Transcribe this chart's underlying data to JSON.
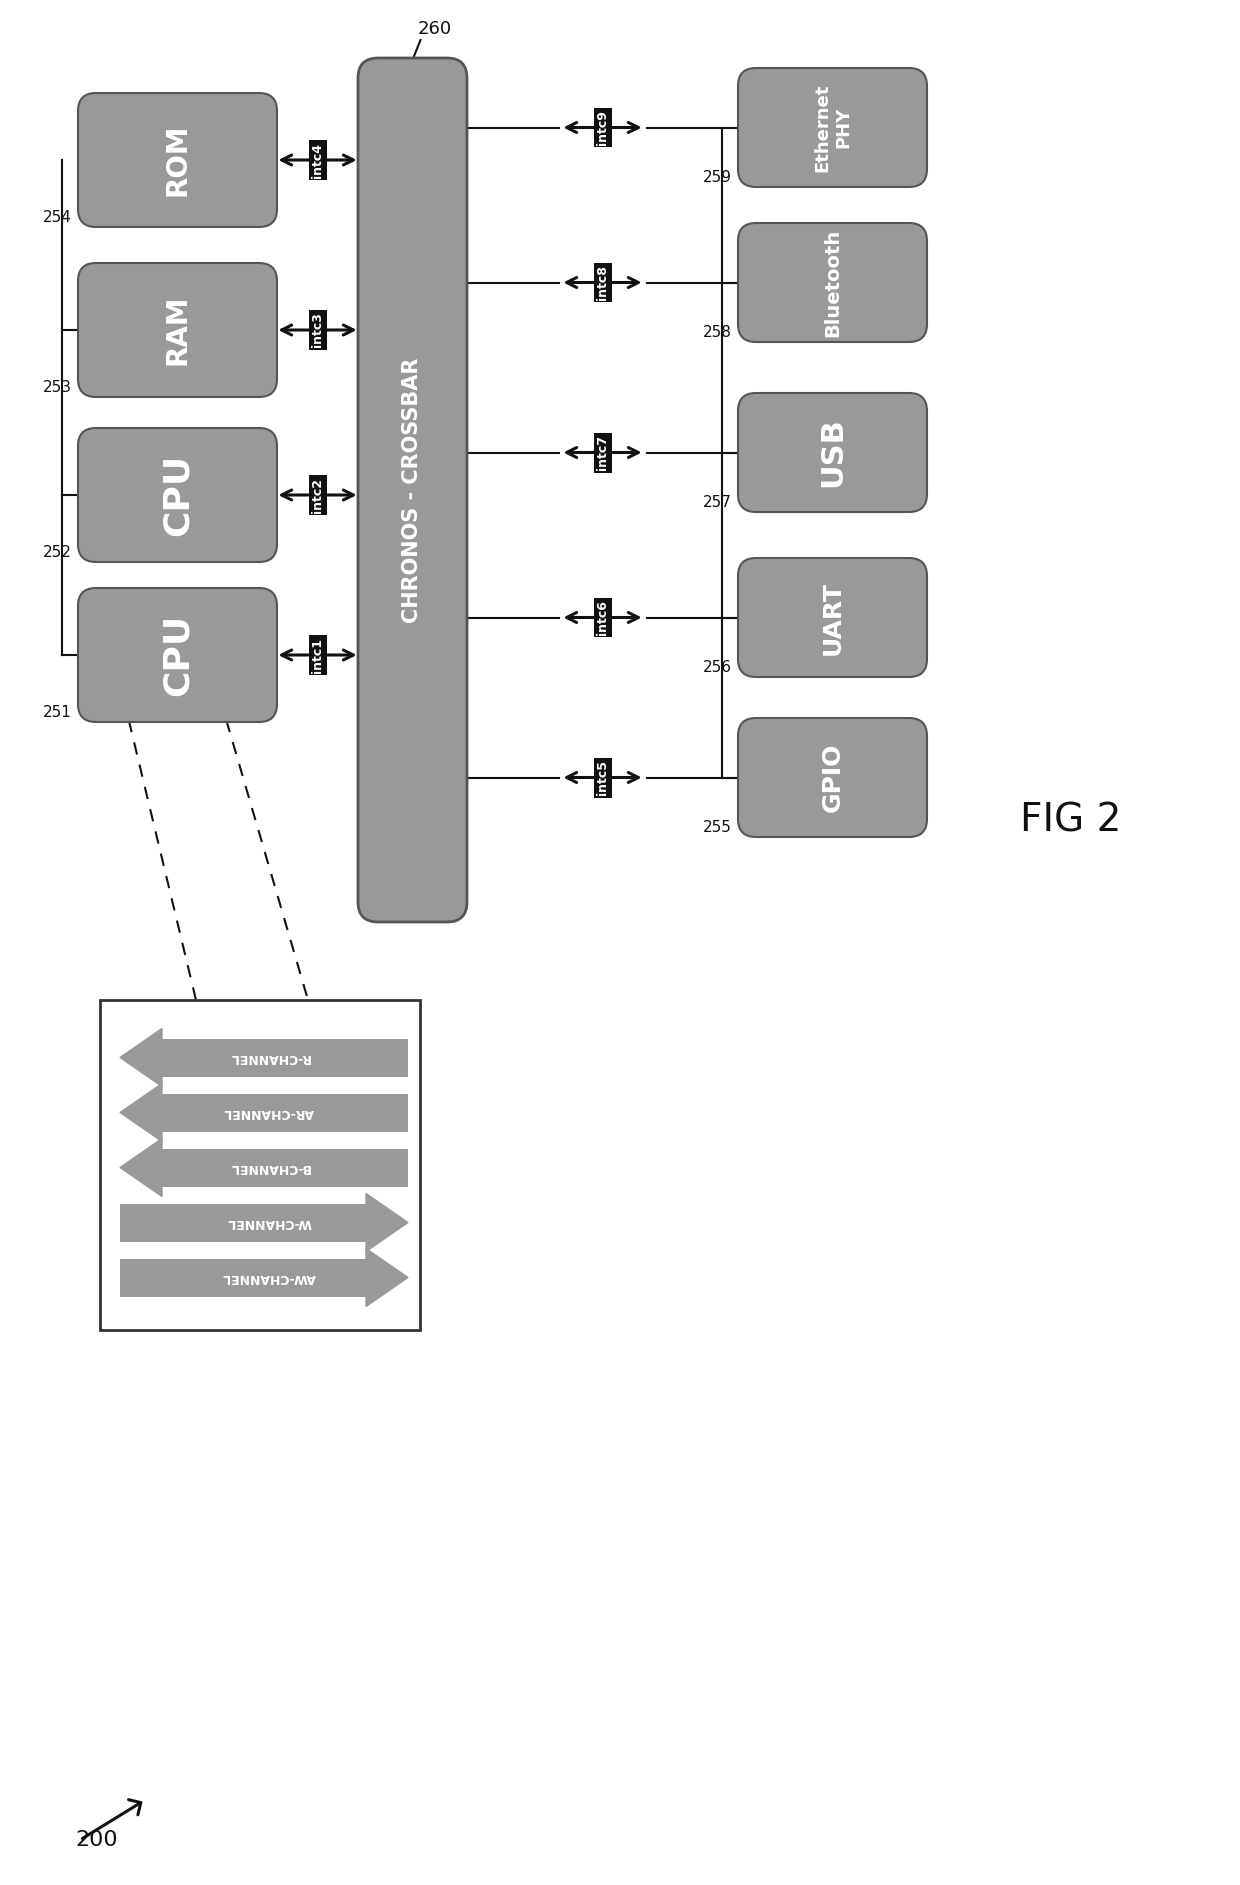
{
  "bg_color": "#ffffff",
  "box_color": "#999999",
  "box_text_color": "#ffffff",
  "arrow_color": "#111111",
  "line_color": "#111111",
  "label_color": "#111111",
  "fig_label": "FIG 2",
  "diagram_label": "200",
  "crossbar_label": "CHRONOS - CROSSBAR",
  "crossbar_id": "260",
  "left_labels": [
    "CPU",
    "CPU",
    "RAM",
    "ROM"
  ],
  "left_ids": [
    "251",
    "252",
    "253",
    "254"
  ],
  "left_intcs": [
    "intc1",
    "intc2",
    "intc3",
    "intc4"
  ],
  "right_labels": [
    "GPIO",
    "UART",
    "USB",
    "Bluetooth",
    "Ethernet\nPHY"
  ],
  "right_ids": [
    "255",
    "256",
    "257",
    "258",
    "259"
  ],
  "right_intcs": [
    "intc5",
    "intc6",
    "intc7",
    "intc8",
    "intc9"
  ],
  "channels": [
    "R-CHANNEL",
    "AR-CHANNEL",
    "B-CHANNEL",
    "W-CHANNEL",
    "AW-CHANNEL"
  ],
  "channel_directions": [
    "left",
    "left",
    "left",
    "right",
    "right"
  ]
}
